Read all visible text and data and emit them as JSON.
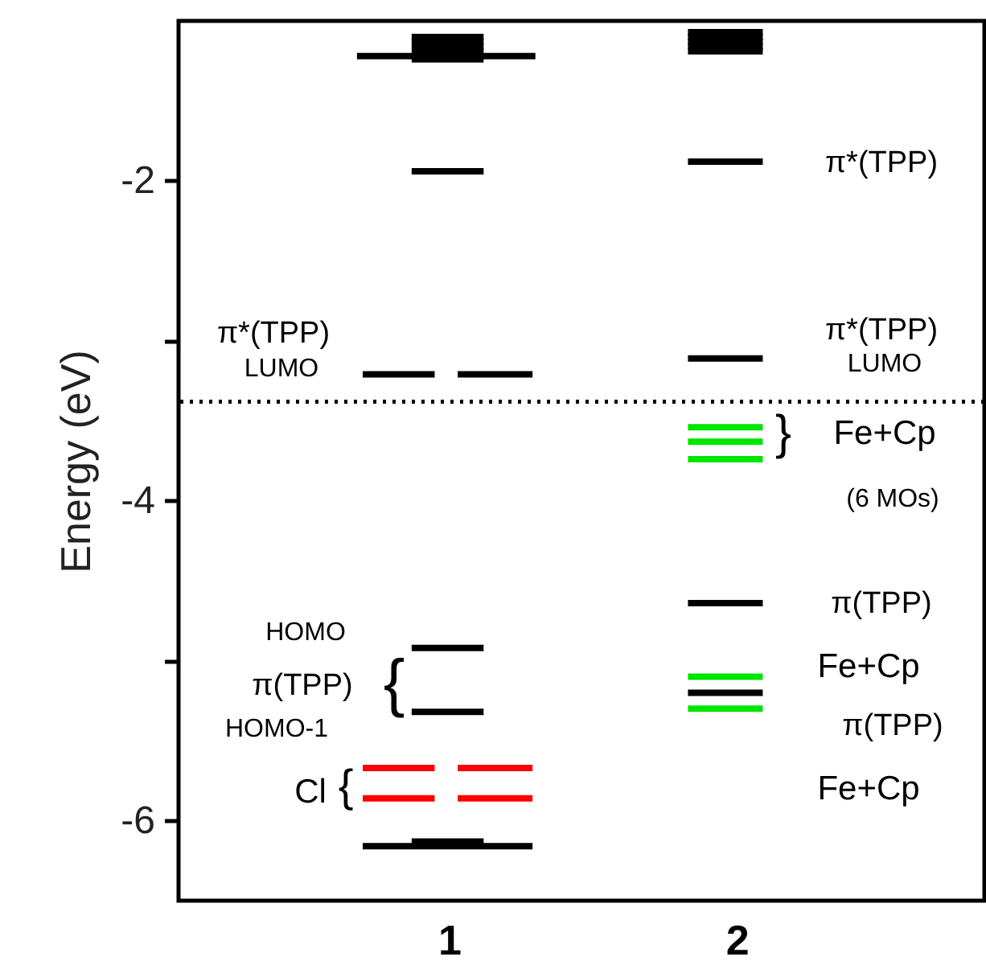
{
  "chart_data": {
    "type": "line",
    "ylabel": "Energy (eV)",
    "xlim": [
      0.06,
      2.86
    ],
    "xticks": [
      1,
      2
    ],
    "ylim": [
      -6.5,
      -1
    ],
    "yticks": [
      -2,
      {
        "value": -3,
        "label": null
      },
      -4,
      {
        "value": -5,
        "label": null
      },
      -6
    ],
    "grid": false,
    "marker": "none",
    "line_style": "solid",
    "series": [
      {
        "color": "#000000",
        "x": [
          0.68,
          1.3
        ],
        "values": [
          -1.22,
          -1.22
        ]
      },
      {
        "color": "#000000",
        "x": [
          0.87,
          1.12
        ],
        "values": [
          -1.1,
          -1.1
        ]
      },
      {
        "color": "#000000",
        "x": [
          0.87,
          1.12
        ],
        "values": [
          -1.13,
          -1.13
        ]
      },
      {
        "color": "#000000",
        "x": [
          0.87,
          1.12
        ],
        "values": [
          -1.16,
          -1.16
        ]
      },
      {
        "color": "#000000",
        "x": [
          0.87,
          1.12
        ],
        "values": [
          -1.19,
          -1.19
        ]
      },
      {
        "color": "#000000",
        "x": [
          0.87,
          1.12
        ],
        "values": [
          -1.24,
          -1.24
        ]
      },
      {
        "color": "#000000",
        "x": [
          0.87,
          1.12
        ],
        "values": [
          -1.94,
          -1.94
        ]
      },
      {
        "color": "#000000",
        "x": [
          0.7,
          0.95
        ],
        "values": [
          -3.21,
          -3.21
        ]
      },
      {
        "color": "#000000",
        "x": [
          1.03,
          1.29
        ],
        "values": [
          -3.21,
          -3.21
        ]
      },
      {
        "color": "#000000",
        "x": [
          0.87,
          1.12
        ],
        "values": [
          -4.92,
          -4.92
        ]
      },
      {
        "color": "#000000",
        "x": [
          0.87,
          1.12
        ],
        "values": [
          -5.32,
          -5.32
        ]
      },
      {
        "color": "#ff0000",
        "x": [
          0.7,
          0.95
        ],
        "values": [
          -5.67,
          -5.67
        ]
      },
      {
        "color": "#ff0000",
        "x": [
          1.03,
          1.29
        ],
        "values": [
          -5.67,
          -5.67
        ]
      },
      {
        "color": "#ff0000",
        "x": [
          0.7,
          0.95
        ],
        "values": [
          -5.86,
          -5.86
        ]
      },
      {
        "color": "#ff0000",
        "x": [
          1.03,
          1.29
        ],
        "values": [
          -5.86,
          -5.86
        ]
      },
      {
        "color": "#000000",
        "x": [
          0.7,
          1.29
        ],
        "values": [
          -6.16,
          -6.16
        ]
      },
      {
        "color": "#000000",
        "x": [
          0.87,
          1.12
        ],
        "values": [
          -6.13,
          -6.13
        ]
      },
      {
        "color": "#000000",
        "x": [
          1.83,
          2.09
        ],
        "values": [
          -1.07,
          -1.07
        ]
      },
      {
        "color": "#000000",
        "x": [
          1.83,
          2.09
        ],
        "values": [
          -1.1,
          -1.1
        ]
      },
      {
        "color": "#000000",
        "x": [
          1.83,
          2.09
        ],
        "values": [
          -1.13,
          -1.13
        ]
      },
      {
        "color": "#000000",
        "x": [
          1.83,
          2.09
        ],
        "values": [
          -1.16,
          -1.16
        ]
      },
      {
        "color": "#000000",
        "x": [
          1.83,
          2.09
        ],
        "values": [
          -1.19,
          -1.19
        ]
      },
      {
        "color": "#000000",
        "x": [
          1.83,
          2.09
        ],
        "values": [
          -1.88,
          -1.88
        ]
      },
      {
        "color": "#000000",
        "x": [
          1.83,
          2.09
        ],
        "values": [
          -3.11,
          -3.11
        ]
      },
      {
        "color": "#00e600",
        "x": [
          1.83,
          2.09
        ],
        "values": [
          -3.54,
          -3.54
        ]
      },
      {
        "color": "#00e600",
        "x": [
          1.83,
          2.09
        ],
        "values": [
          -3.63,
          -3.63
        ]
      },
      {
        "color": "#00e600",
        "x": [
          1.83,
          2.09
        ],
        "values": [
          -3.74,
          -3.74
        ]
      },
      {
        "color": "#000000",
        "x": [
          1.83,
          2.09
        ],
        "values": [
          -4.64,
          -4.64
        ]
      },
      {
        "color": "#00e600",
        "x": [
          1.83,
          2.09
        ],
        "values": [
          -5.1,
          -5.1
        ]
      },
      {
        "color": "#000000",
        "x": [
          1.83,
          2.09
        ],
        "values": [
          -5.2,
          -5.2
        ]
      },
      {
        "color": "#00e600",
        "x": [
          1.83,
          2.09
        ],
        "values": [
          -5.3,
          -5.3
        ]
      }
    ],
    "ref_lines": [
      {
        "axis": "y",
        "value": -3.38,
        "color": "#000000",
        "line_style": "dotted"
      }
    ],
    "annotations": [
      "π*(TPP)",
      "LUMO",
      "π*(TPP)",
      "π*(TPP)",
      "LUMO",
      "}",
      "Fe+Cp",
      "(6 MOs)",
      "π(TPP)",
      "Fe+Cp",
      "π(TPP)",
      "Fe+Cp",
      "HOMO",
      "π(TPP)",
      "{",
      "HOMO-1",
      "Cl",
      "{"
    ]
  }
}
